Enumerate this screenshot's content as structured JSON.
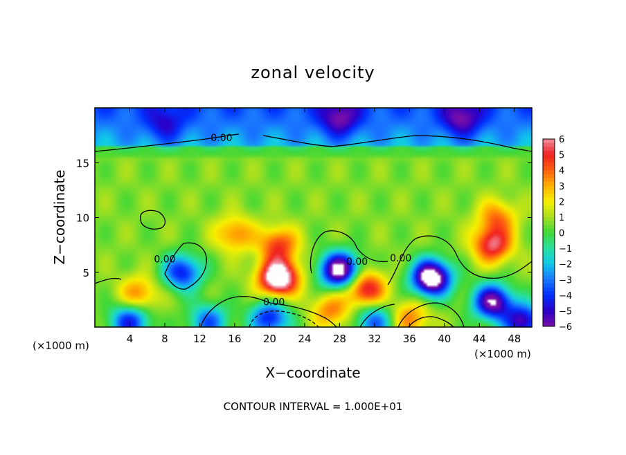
{
  "chart_data": {
    "type": "heatmap",
    "title": "zonal velocity",
    "xlabel": "X−coordinate",
    "ylabel": "Z−coordinate",
    "x_unit_left": "(×1000 m)",
    "x_unit_right": "(×1000 m)",
    "footer": "CONTOUR INTERVAL = 1.000E+01",
    "xlim": [
      0,
      50
    ],
    "ylim": [
      0,
      20
    ],
    "x_ticks": [
      4,
      8,
      12,
      16,
      20,
      24,
      28,
      32,
      36,
      40,
      44,
      48
    ],
    "x_tick_labels": [
      "4",
      "8",
      "12",
      "16",
      "20",
      "24",
      "28",
      "32",
      "36",
      "40",
      "44",
      "48"
    ],
    "y_ticks": [
      5,
      10,
      15
    ],
    "y_tick_labels": [
      "5",
      "10",
      "15"
    ],
    "colorbar": {
      "min": -6,
      "max": 6,
      "ticks": [
        6,
        5,
        4,
        3,
        2,
        1,
        0,
        -1,
        -2,
        -3,
        -4,
        -5,
        -6
      ],
      "tick_labels": [
        "6",
        "5",
        "4",
        "3",
        "2",
        "1",
        "0",
        "−1",
        "−2",
        "−3",
        "−4",
        "−5",
        "−6"
      ]
    },
    "contour_label": "0.00",
    "zero_contour_labels": [
      {
        "x": 14.5,
        "y": 17.3
      },
      {
        "x": 8.0,
        "y": 6.2
      },
      {
        "x": 20.5,
        "y": 2.3
      },
      {
        "x": 30.0,
        "y": 6.0
      },
      {
        "x": 35.0,
        "y": 6.3
      }
    ],
    "features": [
      {
        "kind": "positive",
        "x": 21,
        "z": 4.5,
        "amplitude": 8
      },
      {
        "kind": "positive",
        "x": 21,
        "z": 7.5,
        "amplitude": 4
      },
      {
        "kind": "positive",
        "x": 16,
        "z": 8.5,
        "amplitude": 3
      },
      {
        "kind": "positive",
        "x": 45.5,
        "z": 7.5,
        "amplitude": 5
      },
      {
        "kind": "positive",
        "x": 46,
        "z": 10.0,
        "amplitude": 3
      },
      {
        "kind": "positive",
        "x": 31,
        "z": 3.5,
        "amplitude": 5
      },
      {
        "kind": "positive",
        "x": 5,
        "z": 3.0,
        "amplitude": 3
      },
      {
        "kind": "positive",
        "x": 36,
        "z": 0.8,
        "amplitude": 3
      },
      {
        "kind": "positive",
        "x": 27,
        "z": 1.5,
        "amplitude": 3
      },
      {
        "kind": "negative",
        "x": 38.5,
        "z": 4.5,
        "amplitude": 9
      },
      {
        "kind": "negative",
        "x": 28,
        "z": 5.2,
        "amplitude": 8
      },
      {
        "kind": "negative",
        "x": 10,
        "z": 5.0,
        "amplitude": 5
      },
      {
        "kind": "negative",
        "x": 45.5,
        "z": 2.3,
        "amplitude": 7
      },
      {
        "kind": "negative",
        "x": 49,
        "z": 0.5,
        "amplitude": 6
      },
      {
        "kind": "negative",
        "x": 20,
        "z": 0.8,
        "amplitude": 5
      },
      {
        "kind": "negative",
        "x": 32,
        "z": 0.5,
        "amplitude": 4
      },
      {
        "kind": "negative",
        "x": 4,
        "z": 0.5,
        "amplitude": 5
      },
      {
        "kind": "negative",
        "x": 13,
        "z": 0.5,
        "amplitude": 4
      },
      {
        "kind": "negative",
        "x": 28,
        "z": 19.0,
        "amplitude": 3
      },
      {
        "kind": "negative",
        "x": 42,
        "z": 19.0,
        "amplitude": 3
      },
      {
        "kind": "negative",
        "x": 8,
        "z": 18.5,
        "amplitude": 2
      }
    ]
  }
}
